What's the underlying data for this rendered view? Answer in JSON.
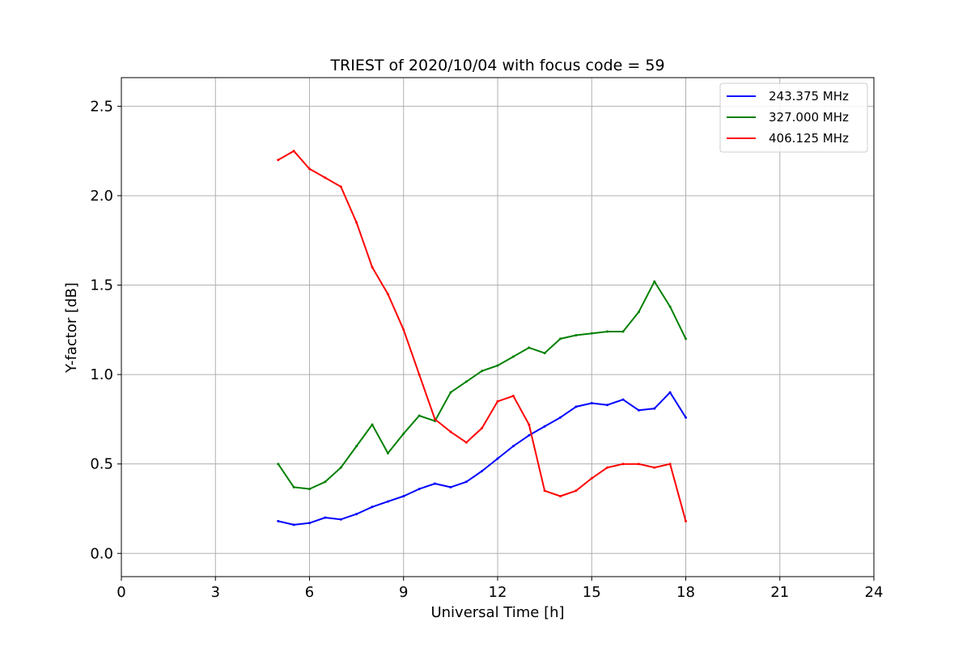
{
  "chart_data": {
    "type": "line",
    "title": "TRIEST of 2020/10/04 with focus code = 59",
    "xlabel": "Universal Time [h]",
    "ylabel": "Y-factor [dB]",
    "xlim": [
      0,
      24
    ],
    "ylim": [
      -0.13,
      2.66
    ],
    "xticks": [
      0,
      3,
      6,
      9,
      12,
      15,
      18,
      21,
      24
    ],
    "xtick_labels": [
      "0",
      "3",
      "6",
      "9",
      "12",
      "15",
      "18",
      "21",
      "24"
    ],
    "yticks": [
      0.0,
      0.5,
      1.0,
      1.5,
      2.0,
      2.5
    ],
    "ytick_labels": [
      "0.0",
      "0.5",
      "1.0",
      "1.5",
      "2.0",
      "2.5"
    ],
    "grid": true,
    "legend_position": "top-right",
    "series": [
      {
        "name": "243.375 MHz",
        "color": "#0000ff",
        "x": [
          5.0,
          5.5,
          6.0,
          6.5,
          7.0,
          7.5,
          8.0,
          8.5,
          9.0,
          9.5,
          10.0,
          10.5,
          11.0,
          11.5,
          12.0,
          12.5,
          13.0,
          13.5,
          14.0,
          14.5,
          15.0,
          15.5,
          16.0,
          16.5,
          17.0,
          17.5,
          18.0
        ],
        "y": [
          0.18,
          0.16,
          0.17,
          0.2,
          0.19,
          0.22,
          0.26,
          0.29,
          0.32,
          0.36,
          0.39,
          0.37,
          0.4,
          0.46,
          0.53,
          0.6,
          0.66,
          0.71,
          0.76,
          0.82,
          0.84,
          0.83,
          0.86,
          0.8,
          0.81,
          0.9,
          0.76
        ]
      },
      {
        "name": "327.000 MHz",
        "color": "#008000",
        "x": [
          5.0,
          5.5,
          6.0,
          6.5,
          7.0,
          7.5,
          8.0,
          8.5,
          9.0,
          9.5,
          10.0,
          10.5,
          11.0,
          11.5,
          12.0,
          12.5,
          13.0,
          13.5,
          14.0,
          14.5,
          15.0,
          15.5,
          16.0,
          16.5,
          17.0,
          17.5,
          18.0
        ],
        "y": [
          0.5,
          0.37,
          0.36,
          0.4,
          0.48,
          0.6,
          0.72,
          0.56,
          0.67,
          0.77,
          0.74,
          0.9,
          0.96,
          1.02,
          1.05,
          1.1,
          1.15,
          1.12,
          1.2,
          1.22,
          1.23,
          1.24,
          1.24,
          1.35,
          1.52,
          1.38,
          1.2
        ]
      },
      {
        "name": "406.125 MHz",
        "color": "#ff0000",
        "x": [
          5.0,
          5.5,
          6.0,
          6.5,
          7.0,
          7.5,
          8.0,
          8.5,
          9.0,
          9.5,
          10.0,
          10.5,
          11.0,
          11.5,
          12.0,
          12.5,
          13.0,
          13.5,
          14.0,
          14.5,
          15.0,
          15.5,
          16.0,
          16.5,
          17.0,
          17.5,
          18.0
        ],
        "y": [
          2.2,
          2.25,
          2.15,
          2.1,
          2.05,
          1.85,
          1.6,
          1.45,
          1.25,
          1.0,
          0.75,
          0.68,
          0.62,
          0.7,
          0.85,
          0.88,
          0.72,
          0.35,
          0.32,
          0.35,
          0.42,
          0.48,
          0.5,
          0.5,
          0.48,
          0.5,
          0.18
        ]
      }
    ]
  }
}
